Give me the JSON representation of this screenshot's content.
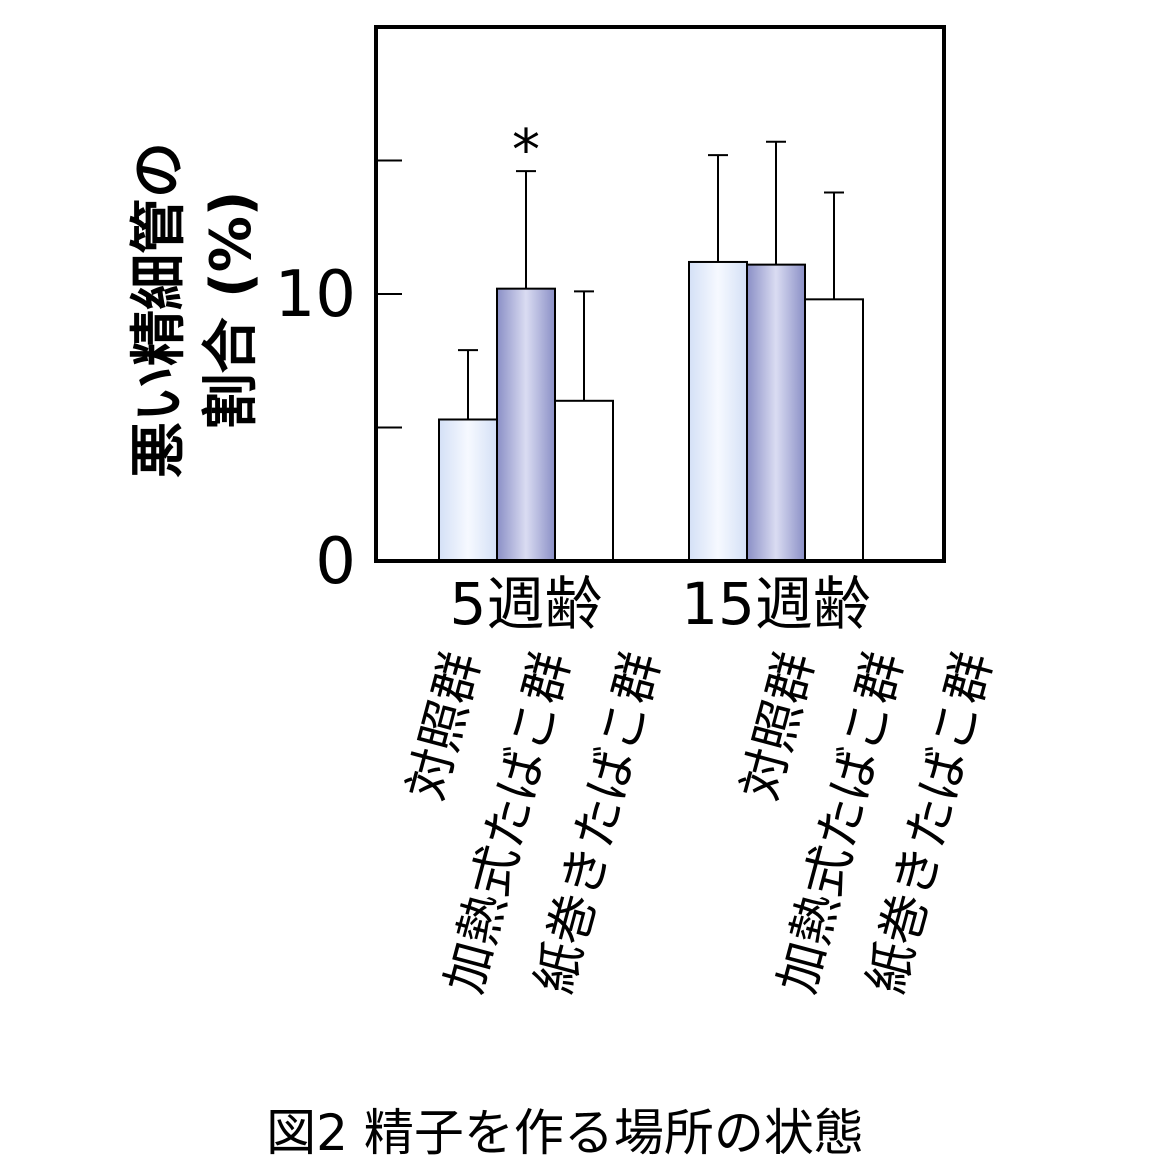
{
  "chart_data": {
    "type": "bar",
    "ylabel_line1": "悪い精細管の",
    "ylabel_line2": "割合 (%)",
    "ylim": [
      0,
      20
    ],
    "yticks": [
      {
        "value": 0,
        "label": "0"
      },
      {
        "value": 5,
        "label": ""
      },
      {
        "value": 10,
        "label": "10"
      },
      {
        "value": 15,
        "label": ""
      }
    ],
    "groups": [
      "5週齢",
      "15週齢"
    ],
    "series": [
      {
        "name": "対照群",
        "values": [
          5.3,
          11.2
        ],
        "errors": [
          2.6,
          4.0
        ],
        "fill": "light-blue"
      },
      {
        "name": "加熱式たばこ群",
        "values": [
          10.2,
          11.1
        ],
        "errors": [
          4.4,
          4.6
        ],
        "fill": "dark-blue"
      },
      {
        "name": "紙巻きたばこ群",
        "values": [
          6.0,
          9.8
        ],
        "errors": [
          4.1,
          4.0
        ],
        "fill": "white"
      }
    ],
    "annotations": [
      {
        "text": "*",
        "group": 0,
        "series": 1
      }
    ],
    "colors": {
      "light_blue_edge": "#d4e0f6",
      "light_blue_center": "#f6f9ff",
      "dark_blue_edge": "#8a8fc6",
      "dark_blue_center": "#dadcf2",
      "white": "#ffffff",
      "stroke": "#000000"
    }
  },
  "caption": "図2 精子を作る場所の状態"
}
